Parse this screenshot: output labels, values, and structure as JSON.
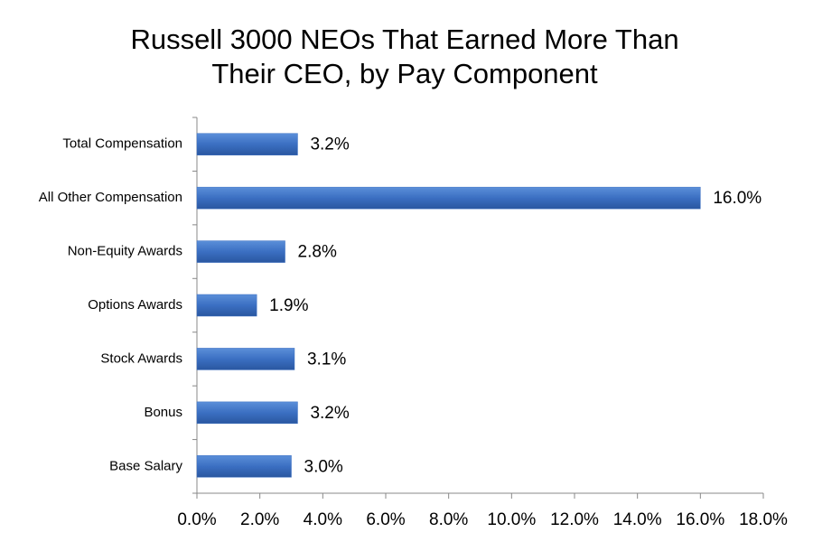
{
  "chart_data": {
    "type": "hbar",
    "title": [
      "Russell 3000 NEOs That Earned More Than",
      "Their CEO, by Pay Component"
    ],
    "categories": [
      "Total Compensation",
      "All Other Compensation",
      "Non-Equity Awards",
      "Options Awards",
      "Stock Awards",
      "Bonus",
      "Base Salary"
    ],
    "values": [
      3.2,
      16.0,
      2.8,
      1.9,
      3.1,
      3.2,
      3.0
    ],
    "value_labels": [
      "3.2%",
      "16.0%",
      "2.8%",
      "1.9%",
      "3.1%",
      "3.2%",
      "3.0%"
    ],
    "color": "#3b6fc2",
    "xlim": [
      0,
      18
    ],
    "xticks": [
      {
        "value": 0,
        "label": "0.0%"
      },
      {
        "value": 2,
        "label": "2.0%"
      },
      {
        "value": 4,
        "label": "4.0%"
      },
      {
        "value": 6,
        "label": "6.0%"
      },
      {
        "value": 8,
        "label": "8.0%"
      },
      {
        "value": 10,
        "label": "10.0%"
      },
      {
        "value": 12,
        "label": "12.0%"
      },
      {
        "value": 14,
        "label": "14.0%"
      },
      {
        "value": 16,
        "label": "16.0%"
      },
      {
        "value": 18,
        "label": "18.0%"
      }
    ],
    "grid": false
  }
}
